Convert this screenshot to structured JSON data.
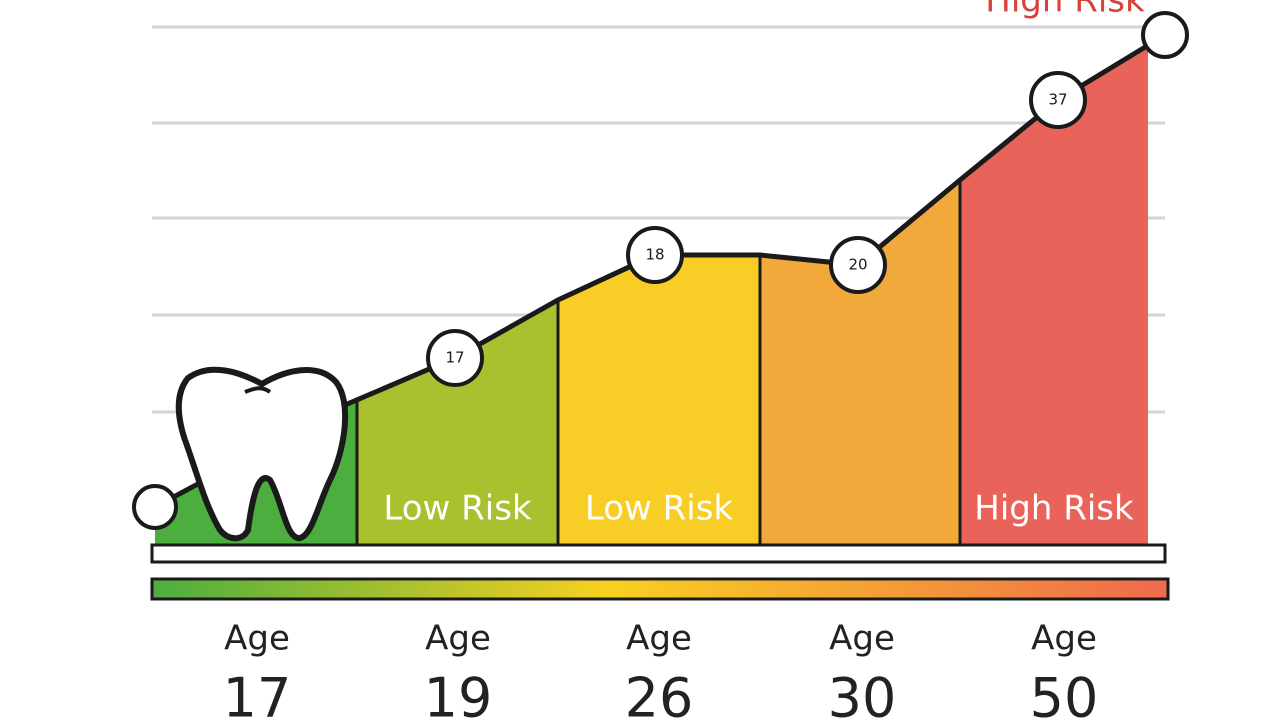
{
  "top_label": "High Risk",
  "segments": [
    {
      "color": "#4cae3f"
    },
    {
      "color": "#a9c02f",
      "label": "Low Risk"
    },
    {
      "color": "#f8cd25",
      "label": "Low Risk"
    },
    {
      "color": "#f2a93c"
    },
    {
      "color": "#e8645a",
      "label": "High Risk"
    }
  ],
  "markers": [
    "17",
    "18",
    "20",
    "37"
  ],
  "ages": [
    {
      "word": "Age",
      "number": "17"
    },
    {
      "word": "Age",
      "number": "19"
    },
    {
      "word": "Age",
      "number": "26"
    },
    {
      "word": "Age",
      "number": "30"
    },
    {
      "word": "Age",
      "number": "50"
    }
  ]
}
